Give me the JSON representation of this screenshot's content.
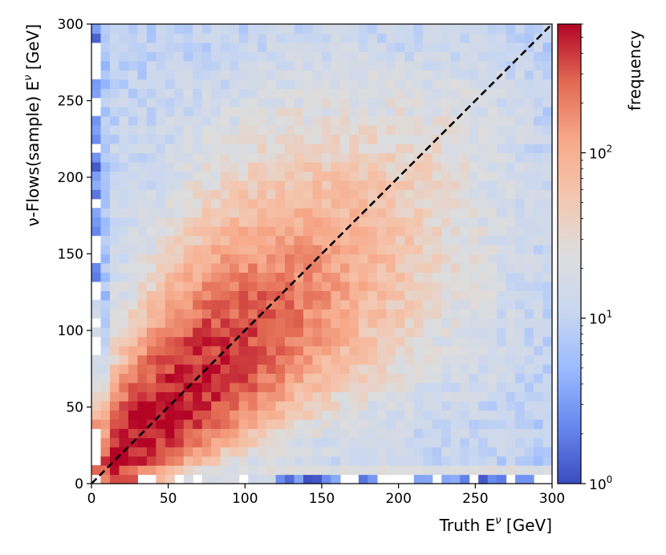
{
  "chart_data": {
    "type": "heatmap",
    "title": "",
    "xlabel": "Truth E^ν [GeV]",
    "xlabel_parts": {
      "main": "Truth E",
      "sup": "ν",
      "unit": " [GeV]"
    },
    "ylabel": "ν-Flows(sample) E^ν [GeV]",
    "ylabel_parts": {
      "main": "ν-Flows(sample) E",
      "sup": "ν",
      "unit": " [GeV]"
    },
    "xlim": [
      0,
      300
    ],
    "ylim": [
      0,
      300
    ],
    "x_ticks": [
      0,
      50,
      100,
      150,
      200,
      250,
      300
    ],
    "y_ticks": [
      0,
      50,
      100,
      150,
      200,
      250,
      300
    ],
    "bins_per_axis": 50,
    "bin_width_gev": 6,
    "diagonal": {
      "style": "dashed",
      "color": "#000000",
      "from": [
        0,
        0
      ],
      "to": [
        300,
        300
      ]
    },
    "colormap": "coolwarm",
    "colormap_stops": [
      "#3b4cc0",
      "#6788ee",
      "#9abbff",
      "#c9d7f0",
      "#dddddd",
      "#f4c6ae",
      "#f7a889",
      "#e26952",
      "#b40426"
    ],
    "colorbar": {
      "label": "frequency",
      "scale": "log",
      "range": [
        1,
        600
      ],
      "ticks": [
        {
          "value": 1,
          "base": "10",
          "exp": "0"
        },
        {
          "value": 10,
          "base": "10",
          "exp": "1"
        },
        {
          "value": 100,
          "base": "10",
          "exp": "2"
        }
      ]
    },
    "peak_frequency": 600,
    "peak_location": [
      35,
      35
    ],
    "description_values": {
      "high_density_band": "along diagonal from 10 to 200 GeV",
      "low_density_region": "x > 250 or y > 250"
    }
  }
}
